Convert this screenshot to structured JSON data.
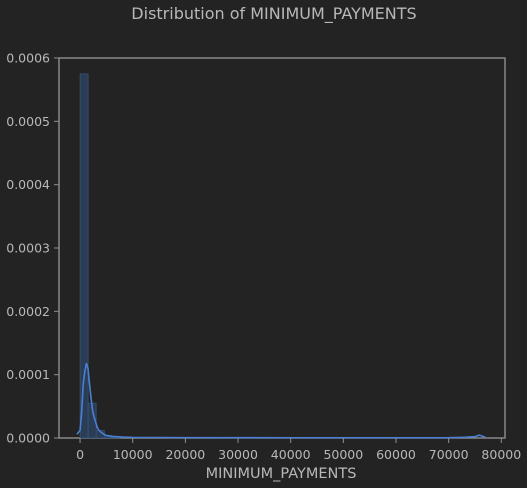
{
  "chart_data": {
    "type": "bar",
    "title": "Distribution of MINIMUM_PAYMENTS",
    "xlabel": "MINIMUM_PAYMENTS",
    "ylabel": "",
    "xlim": [
      -4000,
      80700
    ],
    "ylim": [
      0,
      0.0006
    ],
    "x_ticks": [
      "0",
      "10000",
      "20000",
      "30000",
      "40000",
      "50000",
      "60000",
      "70000",
      "80000"
    ],
    "y_ticks": [
      "0.0000",
      "0.0001",
      "0.0002",
      "0.0003",
      "0.0004",
      "0.0005",
      "0.0006"
    ],
    "grid": false,
    "histogram": {
      "bin_edges": [
        0,
        1530,
        3060,
        4590,
        6120,
        7650
      ],
      "density": [
        0.000575,
        5.5e-05,
        1.2e-05,
        4e-06,
        1.5e-06
      ]
    },
    "kde": {
      "x": [
        -600,
        0,
        300,
        600,
        900,
        1200,
        1500,
        1800,
        2100,
        2400,
        2700,
        3000,
        3300,
        3600,
        4000,
        4500,
        5000,
        6000,
        7000,
        8000,
        10000,
        15000,
        20000,
        30000,
        40000,
        50000,
        60000,
        70000,
        73000,
        75000,
        75800,
        76400,
        77000
      ],
      "y": [
        6e-06,
        1.2e-05,
        4e-05,
        8.5e-05,
        0.000105,
        0.000118,
        0.00011,
        8.5e-05,
        6.2e-05,
        4.2e-05,
        3.2e-05,
        2.4e-05,
        1.6e-05,
        1.2e-05,
        9e-06,
        6e-06,
        4e-06,
        2.5e-06,
        2e-06,
        1.5e-06,
        1e-06,
        8e-07,
        6e-07,
        5e-07,
        4e-07,
        4e-07,
        4e-07,
        5e-07,
        1.2e-06,
        2e-06,
        4.5e-06,
        3e-06,
        1e-06
      ]
    },
    "colors": {
      "background": "#232323",
      "text": "#b8b8b8",
      "axis": "#8f8f8f",
      "bar_fill": "#2b3d55",
      "bar_edge": "#3a5a86",
      "kde_line": "#4a7fd4"
    }
  }
}
